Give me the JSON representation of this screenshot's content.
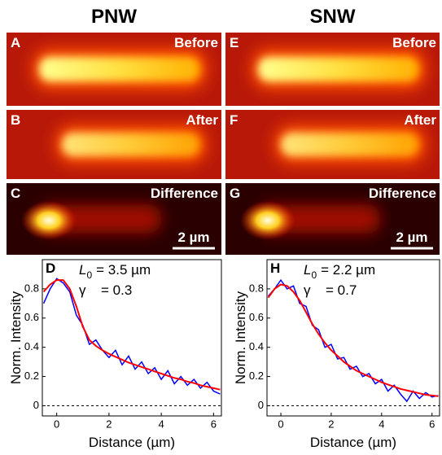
{
  "columns": [
    {
      "title": "PNW",
      "panels": [
        {
          "letter": "A",
          "label": "Before"
        },
        {
          "letter": "B",
          "label": "After"
        },
        {
          "letter": "C",
          "label": "Difference"
        }
      ],
      "scale_bar": "2 µm"
    },
    {
      "title": "SNW",
      "panels": [
        {
          "letter": "E",
          "label": "Before"
        },
        {
          "letter": "F",
          "label": "After"
        },
        {
          "letter": "G",
          "label": "Difference"
        }
      ],
      "scale_bar": "2 µm"
    }
  ],
  "chart_data": [
    {
      "type": "line",
      "panel": "D",
      "xlabel": "Distance (µm)",
      "ylabel": "Norm. Intensity",
      "annotation": {
        "symbol": "L",
        "subscript": "0",
        "value": "= 3.5 µm",
        "symbol2": "γ",
        "value2": "= 0.3"
      },
      "xlim": [
        -0.55,
        6.3
      ],
      "ylim": [
        -0.07,
        1.0
      ],
      "xticks": [
        0,
        2,
        4,
        6
      ],
      "yticks": [
        0,
        0.2,
        0.4,
        0.6,
        0.8
      ],
      "zero_line": true,
      "x": [
        -0.5,
        -0.25,
        0,
        0.25,
        0.5,
        0.75,
        1,
        1.25,
        1.5,
        1.75,
        2,
        2.25,
        2.5,
        2.75,
        3,
        3.25,
        3.5,
        3.75,
        4,
        4.25,
        4.5,
        4.75,
        5,
        5.25,
        5.5,
        5.75,
        6,
        6.25
      ],
      "series": [
        {
          "color": "#0000ff",
          "values": [
            0.7,
            0.8,
            0.87,
            0.84,
            0.78,
            0.62,
            0.55,
            0.42,
            0.45,
            0.38,
            0.33,
            0.38,
            0.28,
            0.34,
            0.25,
            0.3,
            0.22,
            0.26,
            0.18,
            0.24,
            0.15,
            0.2,
            0.14,
            0.18,
            0.12,
            0.16,
            0.1,
            0.08
          ]
        },
        {
          "color": "#ff0000",
          "values": [
            0.78,
            0.83,
            0.86,
            0.86,
            0.8,
            0.68,
            0.54,
            0.45,
            0.41,
            0.38,
            0.355,
            0.335,
            0.315,
            0.295,
            0.28,
            0.265,
            0.25,
            0.235,
            0.22,
            0.205,
            0.19,
            0.18,
            0.165,
            0.155,
            0.14,
            0.13,
            0.12,
            0.11
          ]
        }
      ]
    },
    {
      "type": "line",
      "panel": "H",
      "xlabel": "Distance (µm)",
      "ylabel": "Norm. Intensity",
      "annotation": {
        "symbol": "L",
        "subscript": "0",
        "value": "= 2.2 µm",
        "symbol2": "γ",
        "value2": "= 0.7"
      },
      "xlim": [
        -0.55,
        6.3
      ],
      "ylim": [
        -0.07,
        1.0
      ],
      "xticks": [
        0,
        2,
        4,
        6
      ],
      "yticks": [
        0,
        0.2,
        0.4,
        0.6,
        0.8
      ],
      "zero_line": true,
      "x": [
        -0.5,
        -0.25,
        0,
        0.25,
        0.5,
        0.75,
        1,
        1.25,
        1.5,
        1.75,
        2,
        2.25,
        2.5,
        2.75,
        3,
        3.25,
        3.5,
        3.75,
        4,
        4.25,
        4.5,
        4.75,
        5,
        5.25,
        5.5,
        5.75,
        6,
        6.25
      ],
      "series": [
        {
          "color": "#0000ff",
          "values": [
            0.75,
            0.8,
            0.86,
            0.8,
            0.82,
            0.7,
            0.68,
            0.55,
            0.52,
            0.4,
            0.42,
            0.32,
            0.33,
            0.25,
            0.27,
            0.2,
            0.22,
            0.15,
            0.18,
            0.1,
            0.14,
            0.08,
            0.03,
            0.1,
            0.05,
            0.09,
            0.06,
            0.07
          ]
        },
        {
          "color": "#ff0000",
          "values": [
            0.74,
            0.8,
            0.83,
            0.82,
            0.78,
            0.72,
            0.64,
            0.56,
            0.49,
            0.43,
            0.38,
            0.34,
            0.3,
            0.27,
            0.24,
            0.22,
            0.2,
            0.18,
            0.16,
            0.145,
            0.13,
            0.115,
            0.105,
            0.095,
            0.085,
            0.075,
            0.07,
            0.065
          ]
        }
      ]
    }
  ]
}
